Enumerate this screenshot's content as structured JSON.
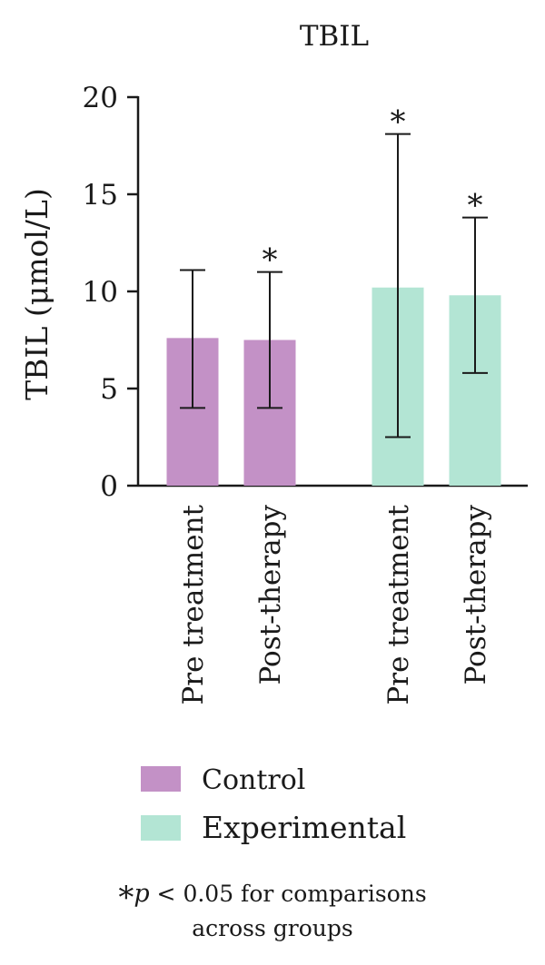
{
  "chart_data": {
    "type": "bar",
    "title": "TBIL",
    "ylabel": "TBIL (μmol/L)",
    "xlabel": "",
    "ylim": [
      0,
      20
    ],
    "yticks": [
      0,
      5,
      10,
      15,
      20
    ],
    "grid": false,
    "legend_position": "bottom",
    "bars": [
      {
        "group": "Control",
        "category": "Pre treatment",
        "value": 7.6,
        "error_low": 4.0,
        "error_high": 11.1,
        "marker": ""
      },
      {
        "group": "Control",
        "category": "Post-therapy",
        "value": 7.5,
        "error_low": 4.0,
        "error_high": 11.0,
        "marker": "*"
      },
      {
        "group": "Experimental",
        "category": "Pre treatment",
        "value": 10.2,
        "error_low": 2.5,
        "error_high": 18.1,
        "marker": "*"
      },
      {
        "group": "Experimental",
        "category": "Post-therapy",
        "value": 9.8,
        "error_low": 5.8,
        "error_high": 13.8,
        "marker": "*"
      }
    ],
    "legend": [
      {
        "name": "Control",
        "color": "#c391c6"
      },
      {
        "name": "Experimental",
        "color": "#b3e5d4"
      }
    ]
  },
  "footnote": {
    "star": "*",
    "p": "p",
    "text": " < 0.05 for comparisons",
    "line2": "across groups"
  }
}
